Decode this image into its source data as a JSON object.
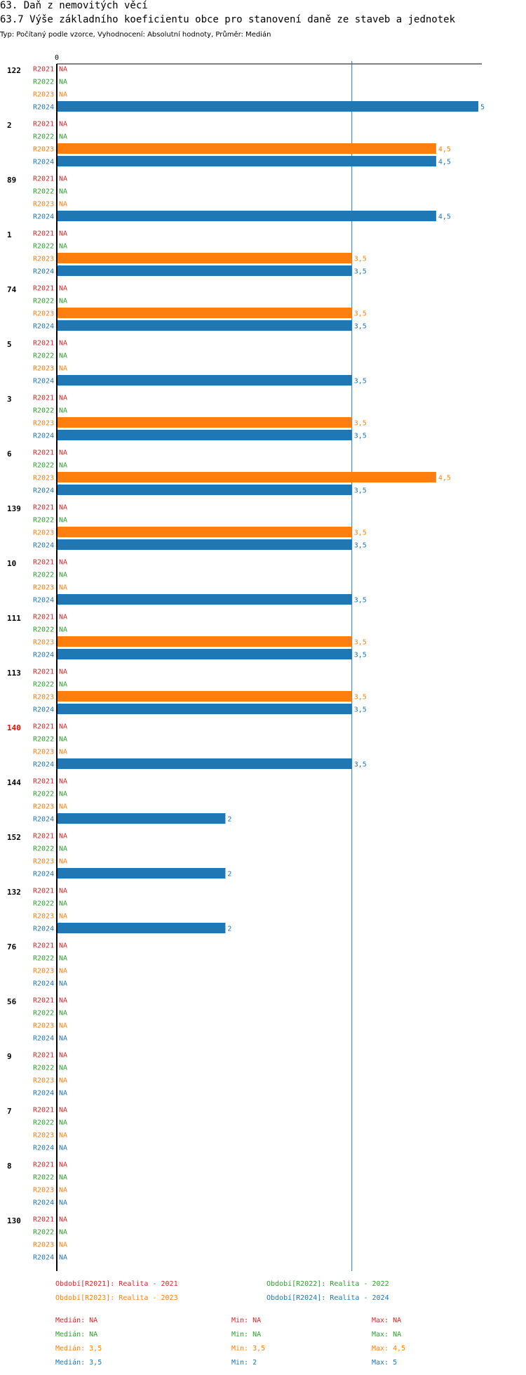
{
  "header": {
    "title": "63. Daň z nemovitých věcí",
    "subtitle": "63.7 Výše základního koeficientu obce pro stanovení daně ze staveb a jednotek",
    "description": "Typ: Počítaný podle vzorce, Vyhodnocení: Absolutní hodnoty, Průměr: Medián"
  },
  "colors": {
    "R2021": "#d62728",
    "R2022": "#2ca02c",
    "R2023": "#ff7f0e",
    "R2024": "#1f77b4",
    "highlight": "#ff0000",
    "axis": "#000000",
    "median_line": "#1f77b4"
  },
  "chart_data": {
    "type": "bar",
    "orientation": "horizontal",
    "title": "63.7 Výše základního koeficientu obce pro stanovení daně ze staveb a jednotek",
    "x_tick_labels": [
      "0"
    ],
    "xlim": [
      0,
      5
    ],
    "median_reference": 3.5,
    "na_label": "NA",
    "series_names": [
      "R2021",
      "R2022",
      "R2023",
      "R2024"
    ],
    "categories": [
      "122",
      "2",
      "89",
      "1",
      "74",
      "5",
      "3",
      "6",
      "139",
      "10",
      "111",
      "113",
      "140",
      "144",
      "152",
      "132",
      "76",
      "56",
      "9",
      "7",
      "8",
      "130"
    ],
    "highlighted_category": "140",
    "series": [
      {
        "name": "R2021",
        "values": [
          null,
          null,
          null,
          null,
          null,
          null,
          null,
          null,
          null,
          null,
          null,
          null,
          null,
          null,
          null,
          null,
          null,
          null,
          null,
          null,
          null,
          null
        ]
      },
      {
        "name": "R2022",
        "values": [
          null,
          null,
          null,
          null,
          null,
          null,
          null,
          null,
          null,
          null,
          null,
          null,
          null,
          null,
          null,
          null,
          null,
          null,
          null,
          null,
          null,
          null
        ]
      },
      {
        "name": "R2023",
        "values": [
          null,
          4.5,
          null,
          3.5,
          3.5,
          null,
          3.5,
          4.5,
          3.5,
          null,
          3.5,
          3.5,
          null,
          null,
          null,
          null,
          null,
          null,
          null,
          null,
          null,
          null
        ]
      },
      {
        "name": "R2024",
        "values": [
          5,
          4.5,
          4.5,
          3.5,
          3.5,
          3.5,
          3.5,
          3.5,
          3.5,
          3.5,
          3.5,
          3.5,
          3.5,
          2,
          2,
          2,
          null,
          null,
          null,
          null,
          null,
          null
        ]
      }
    ]
  },
  "legend": {
    "periods": [
      {
        "key": "R2021",
        "text": "Období[R2021]: Realita - 2021"
      },
      {
        "key": "R2022",
        "text": "Období[R2022]: Realita - 2022"
      },
      {
        "key": "R2023",
        "text": "Období[R2023]: Realita - 2023"
      },
      {
        "key": "R2024",
        "text": "Období[R2024]: Realita - 2024"
      }
    ],
    "stats": [
      {
        "key": "R2021",
        "median": "Medián: NA",
        "min": "Min: NA",
        "max": "Max: NA"
      },
      {
        "key": "R2022",
        "median": "Medián: NA",
        "min": "Min: NA",
        "max": "Max: NA"
      },
      {
        "key": "R2023",
        "median": "Medián: 3,5",
        "min": "Min: 3,5",
        "max": "Max: 4,5"
      },
      {
        "key": "R2024",
        "median": "Medián: 3,5",
        "min": "Min: 2",
        "max": "Max: 5"
      }
    ]
  }
}
